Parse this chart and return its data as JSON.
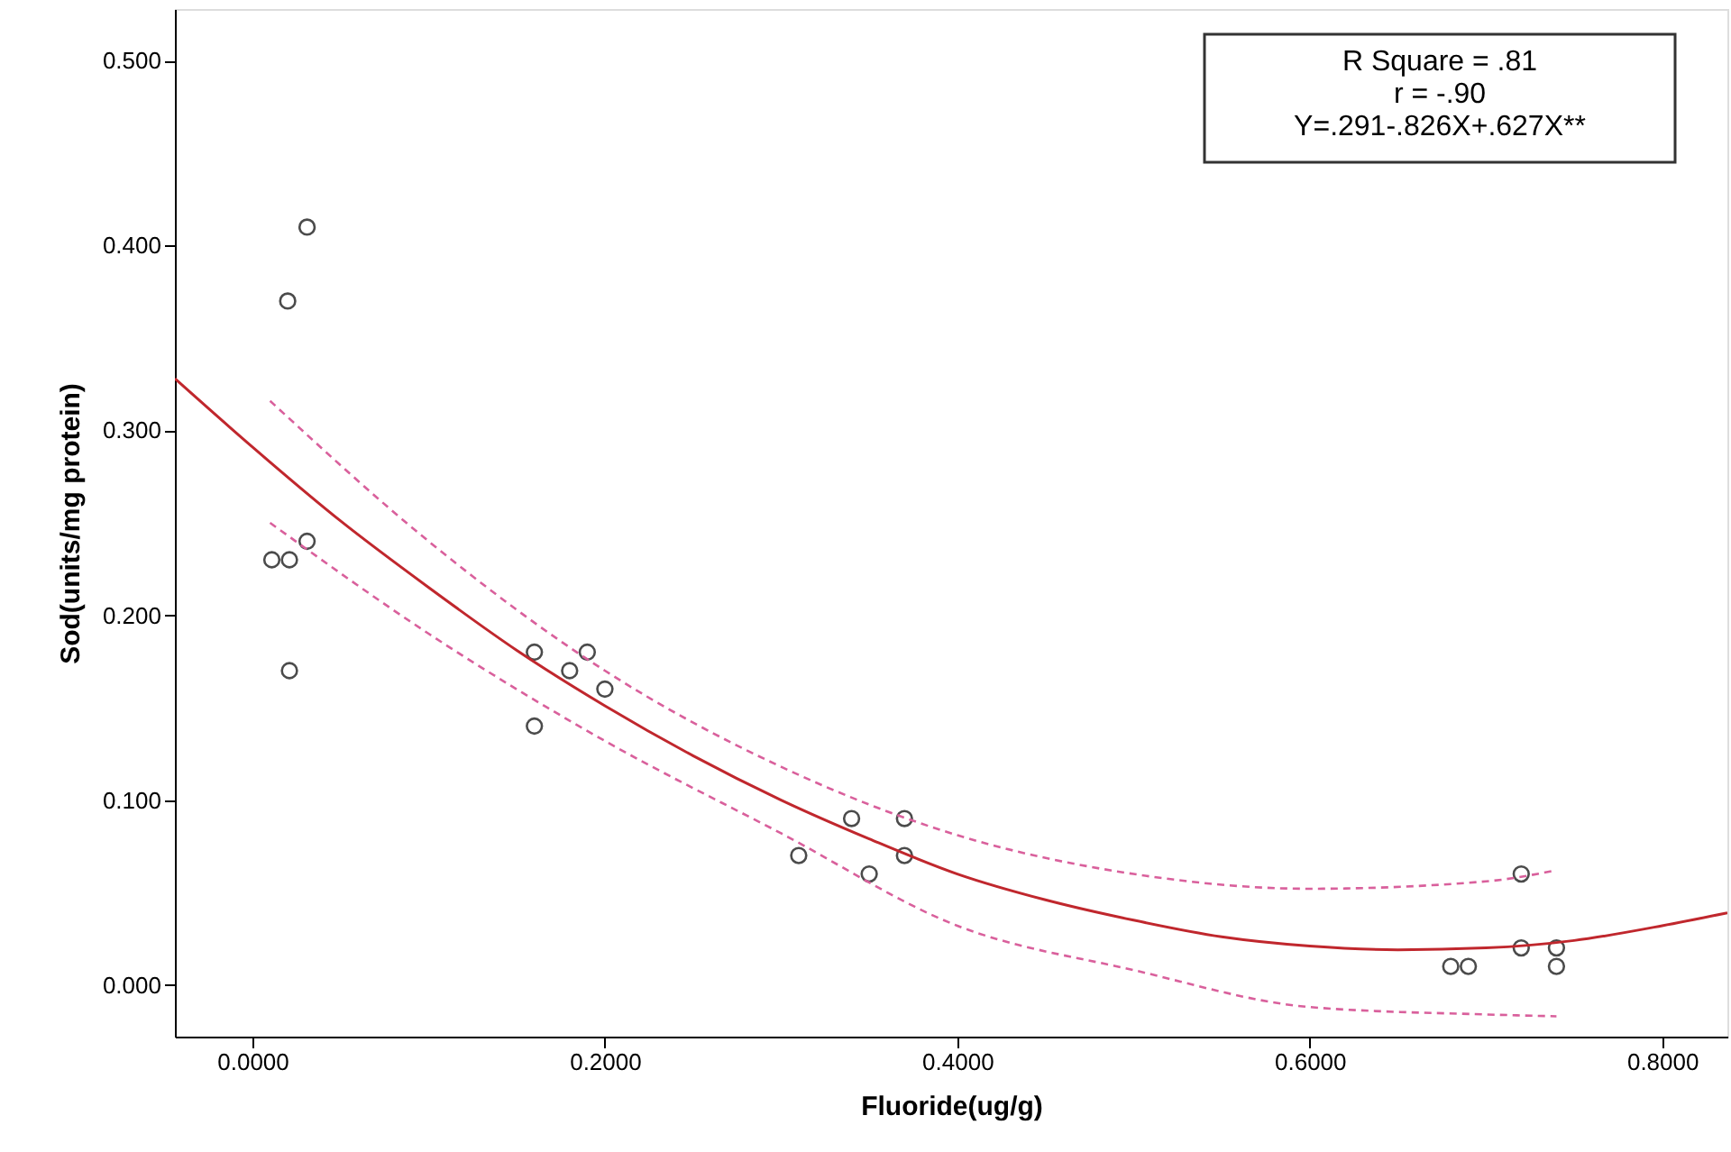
{
  "chart_data": {
    "type": "scatter",
    "xlabel": "Fluoride(ug/g)",
    "ylabel": "Sod(units/mg protein)",
    "xlim": [
      -0.044,
      0.837
    ],
    "ylim": [
      -0.028,
      0.528
    ],
    "xticks": [
      {
        "value": 0,
        "label": "0.0000"
      },
      {
        "value": 0.2,
        "label": "0.2000"
      },
      {
        "value": 0.4,
        "label": "0.4000"
      },
      {
        "value": 0.6,
        "label": "0.6000"
      },
      {
        "value": 0.8,
        "label": "0.8000"
      }
    ],
    "yticks": [
      {
        "value": 0,
        "label": "0.000"
      },
      {
        "value": 0.1,
        "label": "0.100"
      },
      {
        "value": 0.2,
        "label": "0.200"
      },
      {
        "value": 0.3,
        "label": "0.300"
      },
      {
        "value": 0.4,
        "label": "0.400"
      },
      {
        "value": 0.5,
        "label": "0.500"
      }
    ],
    "grid": false,
    "marker": "circle",
    "annotations": [
      "R Square = .81",
      "r = -.90",
      "Y=.291-.826X+.627X**"
    ],
    "series": [
      {
        "color": "#000000",
        "x": [
          0.011,
          0.021,
          0.021,
          0.02,
          0.031,
          0.031,
          0.16,
          0.16,
          0.18,
          0.19,
          0.2,
          0.31,
          0.34,
          0.35,
          0.37,
          0.37,
          0.68,
          0.69,
          0.72,
          0.72,
          0.74,
          0.74
        ],
        "values": [
          0.23,
          0.23,
          0.17,
          0.37,
          0.41,
          0.24,
          0.18,
          0.14,
          0.17,
          0.18,
          0.16,
          0.07,
          0.09,
          0.06,
          0.09,
          0.07,
          0.01,
          0.01,
          0.06,
          0.02,
          0.02,
          0.01
        ]
      },
      {
        "type": "line",
        "marker": "none",
        "color": "#c0272d",
        "line_style": "solid",
        "x": [
          -0.044,
          0,
          0.05,
          0.1,
          0.15,
          0.2,
          0.25,
          0.3,
          0.35,
          0.4,
          0.45,
          0.5,
          0.55,
          0.6,
          0.65,
          0.7,
          0.75,
          0.8,
          0.837
        ],
        "values": [
          0.328,
          0.291,
          0.251,
          0.215,
          0.181,
          0.151,
          0.124,
          0.1,
          0.079,
          0.06,
          0.046,
          0.035,
          0.026,
          0.021,
          0.019,
          0.02,
          0.024,
          0.032,
          0.039
        ]
      },
      {
        "type": "line",
        "color": "#d9609c",
        "line_style": "dashed",
        "x": [
          0.01,
          0.1,
          0.2,
          0.3,
          0.4,
          0.5,
          0.6,
          0.7,
          0.74
        ],
        "marker": "none",
        "values": [
          0.316,
          0.24,
          0.17,
          0.118,
          0.081,
          0.06,
          0.052,
          0.056,
          0.062
        ]
      },
      {
        "type": "line",
        "color": "#d9609c",
        "line_style": "dashed",
        "x": [
          0.01,
          0.1,
          0.2,
          0.3,
          0.4,
          0.5,
          0.6,
          0.7,
          0.74
        ],
        "marker": "none",
        "values": [
          0.25,
          0.19,
          0.132,
          0.082,
          0.032,
          0.008,
          -0.012,
          -0.016,
          -0.017
        ]
      }
    ]
  }
}
